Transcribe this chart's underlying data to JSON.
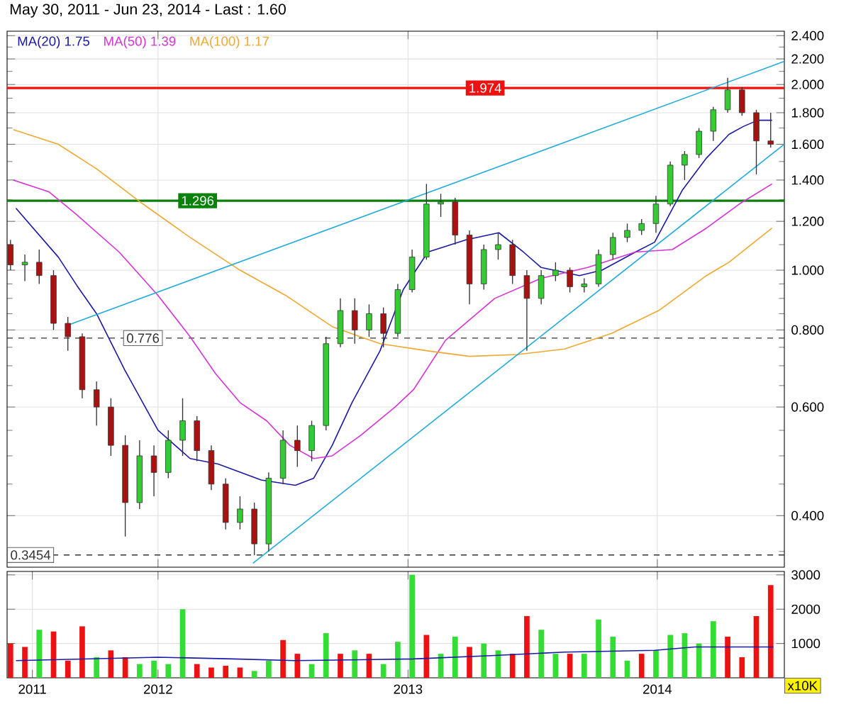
{
  "chart_data": [
    {
      "type": "candlestick",
      "title": "May 30, 2011 - Jun 23, 2014 - Last : 1.60",
      "x": [
        "2011-05-30",
        "2011-06-20",
        "2011-07-11",
        "2011-08-01",
        "2011-08-22",
        "2011-09-12",
        "2011-10-03",
        "2011-10-24",
        "2011-11-14",
        "2011-12-05",
        "2011-12-26",
        "2012-01-16",
        "2012-02-06",
        "2012-02-27",
        "2012-03-19",
        "2012-04-09",
        "2012-04-30",
        "2012-05-21",
        "2012-06-11",
        "2012-07-02",
        "2012-07-23",
        "2012-08-13",
        "2012-09-03",
        "2012-09-24",
        "2012-10-15",
        "2012-11-05",
        "2012-11-26",
        "2012-12-17",
        "2013-01-07",
        "2013-01-28",
        "2013-02-18",
        "2013-03-11",
        "2013-04-01",
        "2013-04-22",
        "2013-05-13",
        "2013-06-03",
        "2013-06-24",
        "2013-07-15",
        "2013-08-05",
        "2013-08-26",
        "2013-09-16",
        "2013-10-07",
        "2013-10-28",
        "2013-11-18",
        "2013-12-09",
        "2013-12-30",
        "2014-01-20",
        "2014-02-10",
        "2014-03-03",
        "2014-03-24",
        "2014-04-14",
        "2014-05-05",
        "2014-05-26",
        "2014-06-16"
      ],
      "ohlc": [
        [
          1.1,
          1.12,
          1.0,
          1.02
        ],
        [
          1.02,
          1.06,
          0.96,
          1.03
        ],
        [
          1.03,
          1.08,
          0.95,
          0.98
        ],
        [
          0.98,
          1.0,
          0.8,
          0.82
        ],
        [
          0.82,
          0.84,
          0.74,
          0.78
        ],
        [
          0.78,
          0.79,
          0.62,
          0.64
        ],
        [
          0.64,
          0.66,
          0.56,
          0.6
        ],
        [
          0.6,
          0.62,
          0.5,
          0.52
        ],
        [
          0.52,
          0.54,
          0.37,
          0.42
        ],
        [
          0.42,
          0.53,
          0.41,
          0.5
        ],
        [
          0.5,
          0.52,
          0.43,
          0.47
        ],
        [
          0.47,
          0.55,
          0.46,
          0.53
        ],
        [
          0.53,
          0.62,
          0.5,
          0.57
        ],
        [
          0.57,
          0.58,
          0.49,
          0.51
        ],
        [
          0.51,
          0.52,
          0.44,
          0.45
        ],
        [
          0.45,
          0.46,
          0.38,
          0.39
        ],
        [
          0.39,
          0.43,
          0.38,
          0.41
        ],
        [
          0.41,
          0.42,
          0.345,
          0.36
        ],
        [
          0.36,
          0.47,
          0.35,
          0.46
        ],
        [
          0.46,
          0.55,
          0.45,
          0.53
        ],
        [
          0.53,
          0.56,
          0.48,
          0.51
        ],
        [
          0.51,
          0.57,
          0.49,
          0.56
        ],
        [
          0.56,
          0.78,
          0.55,
          0.76
        ],
        [
          0.76,
          0.9,
          0.75,
          0.86
        ],
        [
          0.86,
          0.9,
          0.76,
          0.8
        ],
        [
          0.8,
          0.88,
          0.78,
          0.85
        ],
        [
          0.85,
          0.87,
          0.75,
          0.79
        ],
        [
          0.79,
          0.95,
          0.78,
          0.93
        ],
        [
          0.93,
          1.08,
          0.92,
          1.05
        ],
        [
          1.05,
          1.38,
          1.04,
          1.28
        ],
        [
          1.28,
          1.33,
          1.22,
          1.29
        ],
        [
          1.29,
          1.31,
          1.1,
          1.14
        ],
        [
          1.14,
          1.16,
          0.88,
          0.95
        ],
        [
          0.95,
          1.1,
          0.93,
          1.08
        ],
        [
          1.08,
          1.15,
          1.04,
          1.1
        ],
        [
          1.1,
          1.12,
          0.95,
          0.98
        ],
        [
          0.98,
          1.0,
          0.74,
          0.9
        ],
        [
          0.9,
          1.0,
          0.88,
          0.98
        ],
        [
          0.98,
          1.03,
          0.96,
          1.0
        ],
        [
          1.0,
          1.01,
          0.92,
          0.94
        ],
        [
          0.94,
          0.97,
          0.92,
          0.95
        ],
        [
          0.95,
          1.08,
          0.94,
          1.06
        ],
        [
          1.06,
          1.15,
          1.04,
          1.13
        ],
        [
          1.13,
          1.19,
          1.11,
          1.16
        ],
        [
          1.16,
          1.21,
          1.14,
          1.19
        ],
        [
          1.19,
          1.32,
          1.15,
          1.28
        ],
        [
          1.28,
          1.5,
          1.27,
          1.48
        ],
        [
          1.48,
          1.56,
          1.4,
          1.54
        ],
        [
          1.54,
          1.7,
          1.52,
          1.68
        ],
        [
          1.68,
          1.84,
          1.62,
          1.82
        ],
        [
          1.82,
          2.05,
          1.8,
          1.96
        ],
        [
          1.96,
          1.98,
          1.78,
          1.8
        ],
        [
          1.8,
          1.82,
          1.43,
          1.62
        ],
        [
          1.62,
          1.8,
          1.58,
          1.6
        ]
      ],
      "colors": [
        "#aa1111",
        "#33cc33",
        "#aa1111",
        "#aa1111",
        "#aa1111",
        "#aa1111",
        "#aa1111",
        "#aa1111",
        "#aa1111",
        "#33cc33",
        "#aa1111",
        "#33cc33",
        "#33cc33",
        "#aa1111",
        "#aa1111",
        "#aa1111",
        "#33cc33",
        "#aa1111",
        "#33cc33",
        "#33cc33",
        "#aa1111",
        "#33cc33",
        "#33cc33",
        "#33cc33",
        "#aa1111",
        "#33cc33",
        "#aa1111",
        "#33cc33",
        "#33cc33",
        "#33cc33",
        "#33cc33",
        "#aa1111",
        "#aa1111",
        "#33cc33",
        "#33cc33",
        "#aa1111",
        "#aa1111",
        "#33cc33",
        "#33cc33",
        "#aa1111",
        "#33cc33",
        "#33cc33",
        "#33cc33",
        "#33cc33",
        "#33cc33",
        "#33cc33",
        "#33cc33",
        "#33cc33",
        "#33cc33",
        "#33cc33",
        "#33cc33",
        "#aa1111",
        "#aa1111",
        "#aa1111"
      ],
      "series": [
        {
          "type": "line",
          "name": "MA(20) 1.75",
          "color": "#1a1aa6",
          "x": [
            "2011-06-07",
            "2011-08-08",
            "2011-09-04",
            "2011-10-03",
            "2011-11-13",
            "2012-01-01",
            "2012-02-17",
            "2012-03-29",
            "2012-05-31",
            "2012-07-20",
            "2012-08-16",
            "2012-09-12",
            "2012-10-11",
            "2012-11-21",
            "2012-12-25",
            "2013-01-30",
            "2013-03-27",
            "2013-05-14",
            "2013-06-19",
            "2013-07-15",
            "2013-09-09",
            "2013-10-12",
            "2013-11-30",
            "2013-12-28",
            "2014-02-07",
            "2014-03-14",
            "2014-04-16",
            "2014-05-07",
            "2014-05-28",
            "2014-06-18"
          ],
          "values": [
            1.26,
            1.05,
            0.945,
            0.85,
            0.69,
            0.55,
            0.495,
            0.485,
            0.457,
            0.448,
            0.46,
            0.52,
            0.61,
            0.74,
            0.93,
            1.07,
            1.12,
            1.15,
            1.07,
            1.01,
            0.98,
            1.0,
            1.07,
            1.11,
            1.35,
            1.52,
            1.66,
            1.71,
            1.75,
            1.75
          ]
        },
        {
          "type": "line",
          "name": "MA(50) 1.39",
          "color": "#d633d6",
          "x": [
            "2011-06-03",
            "2011-07-25",
            "2011-09-04",
            "2011-11-05",
            "2012-01-01",
            "2012-02-17",
            "2012-03-25",
            "2012-04-30",
            "2012-06-08",
            "2012-07-12",
            "2012-08-16",
            "2012-09-12",
            "2012-10-24",
            "2012-12-13",
            "2013-01-09",
            "2013-02-25",
            "2013-05-08",
            "2013-07-15",
            "2013-09-21",
            "2013-11-30",
            "2014-01-23",
            "2014-03-14",
            "2014-05-01",
            "2014-06-18"
          ],
          "values": [
            1.4,
            1.34,
            1.23,
            1.07,
            0.91,
            0.78,
            0.68,
            0.61,
            0.57,
            0.52,
            0.495,
            0.5,
            0.54,
            0.6,
            0.64,
            0.77,
            0.9,
            0.97,
            1.01,
            1.07,
            1.08,
            1.17,
            1.28,
            1.38
          ]
        },
        {
          "type": "line",
          "name": "MA(100) 1.17",
          "color": "#f0a830",
          "x": [
            "2011-06-03",
            "2011-08-08",
            "2011-10-03",
            "2011-12-10",
            "2012-02-17",
            "2012-04-30",
            "2012-07-06",
            "2012-09-12",
            "2012-11-21",
            "2013-01-30",
            "2013-04-01",
            "2013-06-10",
            "2013-08-18",
            "2013-10-26",
            "2014-01-03",
            "2014-03-14",
            "2014-04-16",
            "2014-06-18"
          ],
          "values": [
            1.69,
            1.6,
            1.46,
            1.28,
            1.13,
            1.0,
            0.91,
            0.81,
            0.76,
            0.74,
            0.725,
            0.73,
            0.745,
            0.79,
            0.86,
            0.98,
            1.03,
            1.17
          ]
        },
        {
          "type": "line",
          "color": "#22aadd",
          "x": [
            "2011-08-23",
            "2014-07-06"
          ],
          "values": [
            0.815,
            2.18
          ]
        },
        {
          "type": "line",
          "color": "#22aadd",
          "x": [
            "2012-05-19",
            "2014-07-06"
          ],
          "values": [
            0.335,
            1.6
          ]
        }
      ],
      "ref_lines": [
        {
          "axis": "y",
          "value": 1.974,
          "label": "1.974",
          "color": "#ee1111"
        },
        {
          "axis": "y",
          "value": 1.296,
          "label": "1.296",
          "color": "#0a820a"
        },
        {
          "axis": "y",
          "value": 0.776,
          "label": "0.776",
          "line_style": "dashed"
        },
        {
          "axis": "y",
          "value": 0.3454,
          "label": "0.3454",
          "line_style": "dashed"
        }
      ],
      "xlim": [
        "2011-05-25",
        "2014-07-06"
      ],
      "xticks": [
        {
          "value": "2012-01-01",
          "label": null
        },
        {
          "value": "2013-01-01",
          "label": null
        },
        {
          "value": "2014-01-01",
          "label": null
        }
      ],
      "ylim": [
        0.33,
        2.44
      ],
      "yticks": [
        {
          "value": 0.35,
          "label": null
        },
        {
          "value": 0.4,
          "label": "0.400"
        },
        {
          "value": 0.45,
          "label": null
        },
        {
          "value": 0.5,
          "label": null
        },
        {
          "value": 0.55,
          "label": null
        },
        {
          "value": 0.6,
          "label": "0.600"
        },
        {
          "value": 0.65,
          "label": null
        },
        {
          "value": 0.7,
          "label": null
        },
        {
          "value": 0.75,
          "label": null
        },
        {
          "value": 0.8,
          "label": "0.800"
        },
        {
          "value": 0.85,
          "label": null
        },
        {
          "value": 0.9,
          "label": null
        },
        {
          "value": 0.95,
          "label": null
        },
        {
          "value": 1.0,
          "label": "1.000"
        },
        {
          "value": 1.1,
          "label": null
        },
        {
          "value": 1.2,
          "label": "1.200"
        },
        {
          "value": 1.3,
          "label": null
        },
        {
          "value": 1.4,
          "label": "1.400"
        },
        {
          "value": 1.5,
          "label": null
        },
        {
          "value": 1.6,
          "label": "1.600"
        },
        {
          "value": 1.7,
          "label": null
        },
        {
          "value": 1.8,
          "label": "1.800"
        },
        {
          "value": 1.9,
          "label": null
        },
        {
          "value": 2.0,
          "label": "2.000"
        },
        {
          "value": 2.1,
          "label": null
        },
        {
          "value": 2.2,
          "label": "2.200"
        },
        {
          "value": 2.3,
          "label": null
        },
        {
          "value": 2.4,
          "label": "2.400"
        }
      ],
      "log": "y",
      "grid": true,
      "legend": "top left",
      "tick_labels": "y"
    },
    {
      "type": "bar",
      "x": [
        "2011-05-30",
        "2011-06-20",
        "2011-07-11",
        "2011-08-01",
        "2011-08-22",
        "2011-09-12",
        "2011-10-03",
        "2011-10-24",
        "2011-11-14",
        "2011-12-05",
        "2011-12-26",
        "2012-01-16",
        "2012-02-06",
        "2012-02-27",
        "2012-03-19",
        "2012-04-09",
        "2012-04-30",
        "2012-05-21",
        "2012-06-11",
        "2012-07-02",
        "2012-07-23",
        "2012-08-13",
        "2012-09-03",
        "2012-09-24",
        "2012-10-15",
        "2012-11-05",
        "2012-11-26",
        "2012-12-17",
        "2013-01-07",
        "2013-01-28",
        "2013-02-18",
        "2013-03-11",
        "2013-04-01",
        "2013-04-22",
        "2013-05-13",
        "2013-06-03",
        "2013-06-24",
        "2013-07-15",
        "2013-08-05",
        "2013-08-26",
        "2013-09-16",
        "2013-10-07",
        "2013-10-28",
        "2013-11-18",
        "2013-12-09",
        "2013-12-30",
        "2014-01-20",
        "2014-02-10",
        "2014-03-03",
        "2014-03-24",
        "2014-04-14",
        "2014-05-05",
        "2014-05-26",
        "2014-06-16"
      ],
      "series": [
        {
          "type": "bar",
          "values": [
            1000,
            900,
            1400,
            1350,
            500,
            1500,
            600,
            800,
            600,
            400,
            500,
            400,
            2000,
            400,
            300,
            350,
            300,
            200,
            500,
            1100,
            700,
            400,
            1300,
            700,
            800,
            700,
            400,
            1050,
            3000,
            1250,
            700,
            1200,
            900,
            1000,
            800,
            700,
            1800,
            1400,
            700,
            700,
            700,
            1700,
            1200,
            500,
            700,
            800,
            1250,
            1300,
            1000,
            1650,
            1200,
            600,
            1800,
            2700
          ],
          "colors": [
            "#ee1111",
            "#ee1111",
            "#33dd33",
            "#ee1111",
            "#ee1111",
            "#ee1111",
            "#33dd33",
            "#ee1111",
            "#ee1111",
            "#33dd33",
            "#33dd33",
            "#33dd33",
            "#33dd33",
            "#ee1111",
            "#ee1111",
            "#ee1111",
            "#ee1111",
            "#33dd33",
            "#33dd33",
            "#ee1111",
            "#ee1111",
            "#33dd33",
            "#33dd33",
            "#ee1111",
            "#33dd33",
            "#ee1111",
            "#33dd33",
            "#33dd33",
            "#33dd33",
            "#ee1111",
            "#33dd33",
            "#33dd33",
            "#ee1111",
            "#33dd33",
            "#33dd33",
            "#ee1111",
            "#ee1111",
            "#33dd33",
            "#33dd33",
            "#ee1111",
            "#33dd33",
            "#33dd33",
            "#33dd33",
            "#33dd33",
            "#ee1111",
            "#33dd33",
            "#33dd33",
            "#33dd33",
            "#33dd33",
            "#33dd33",
            "#ee1111",
            "#ee1111",
            "#ee1111",
            "#ee1111"
          ]
        },
        {
          "type": "line",
          "color": "#1a1aa6",
          "x": [
            "2011-06-07",
            "2012-01-01",
            "2012-04-20",
            "2012-07-20",
            "2013-01-09",
            "2013-05-08",
            "2013-08-18",
            "2013-12-28",
            "2014-02-25",
            "2014-06-20"
          ],
          "values": [
            500,
            600,
            550,
            500,
            550,
            650,
            750,
            800,
            900,
            900
          ]
        }
      ],
      "xlim": [
        "2011-05-25",
        "2014-07-06"
      ],
      "xticks": [
        {
          "value": "2011-07-01",
          "label": "2011"
        },
        {
          "value": "2012-01-01",
          "label": "2012"
        },
        {
          "value": "2013-01-01",
          "label": "2013"
        },
        {
          "value": "2014-01-01",
          "label": "2014"
        }
      ],
      "ylim": [
        0,
        3100
      ],
      "yticks": [
        1000,
        2000,
        3000
      ],
      "grid": true,
      "annotations": [
        "x10K"
      ]
    }
  ]
}
